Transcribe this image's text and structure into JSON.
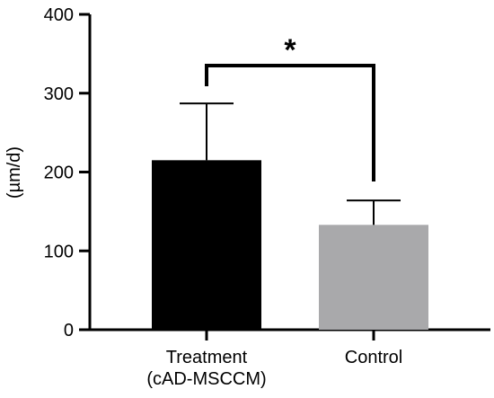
{
  "chart_data": {
    "type": "bar",
    "title": "",
    "xlabel": "",
    "ylabel": "(µm/d)",
    "ylim": [
      0,
      400
    ],
    "yticks": [
      0,
      100,
      200,
      300,
      400
    ],
    "grid": false,
    "categories": [
      [
        "Treatment",
        "(cAD-MSCCM)"
      ],
      [
        "Control"
      ]
    ],
    "values": [
      215,
      133
    ],
    "error_plus": [
      72,
      31
    ],
    "bar_colors": [
      "#000000",
      "#a9a9ab"
    ],
    "significance": {
      "between": [
        0,
        1
      ],
      "label": "*"
    }
  }
}
